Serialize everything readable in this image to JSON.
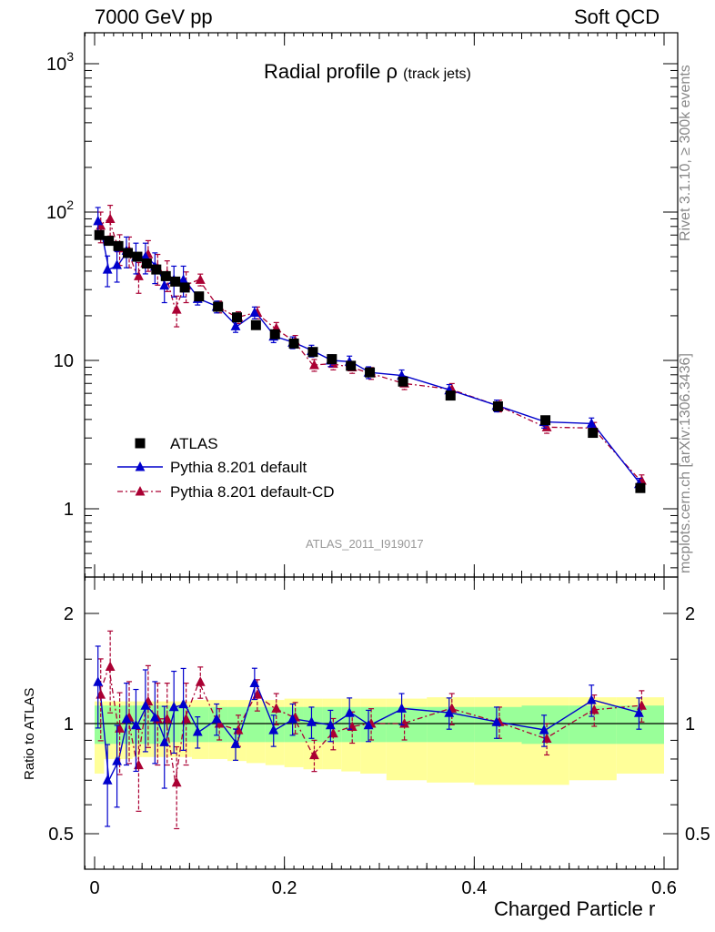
{
  "header": {
    "left": "7000 GeV pp",
    "right": "Soft QCD"
  },
  "side_labels": {
    "rivet": "Rivet 3.1.10, ≥ 300k events",
    "source": "mcplots.cern.ch [arXiv:1306.3436]"
  },
  "analysis_label": "ATLAS_2011_I919017",
  "colors": {
    "atlas": "#000000",
    "pythia_default": "#0000cc",
    "pythia_cd": "#aa0033",
    "band_inner": "#99ff99",
    "band_outer": "#ffff99"
  },
  "chart_data": [
    {
      "type": "scatter",
      "title": "Radial profile",
      "title_symbol": "ρ",
      "title_suffix": "(track jets)",
      "xlabel": "Charged Particle r",
      "ylabel": "",
      "yscale": "log",
      "xlim": [
        -0.01,
        0.6
      ],
      "ylim": [
        0.35,
        1600
      ],
      "x_ticks": [
        "0",
        "0.2",
        "0.4",
        "0.6"
      ],
      "y_ticks": [
        "1",
        "10",
        "10^2",
        "10^3"
      ],
      "legend": [
        "ATLAS",
        "Pythia 8.201 default",
        "Pythia 8.201 default-CD"
      ],
      "legend_position": "lower-left",
      "x": [
        0.005,
        0.015,
        0.025,
        0.035,
        0.045,
        0.055,
        0.065,
        0.075,
        0.085,
        0.095,
        0.11,
        0.13,
        0.15,
        0.17,
        0.19,
        0.21,
        0.23,
        0.25,
        0.27,
        0.29,
        0.325,
        0.375,
        0.425,
        0.475,
        0.525,
        0.575
      ],
      "series": [
        {
          "name": "ATLAS",
          "marker": "square",
          "values": [
            70,
            64,
            59,
            53,
            50,
            45,
            41,
            37,
            34,
            31,
            27,
            23,
            19.5,
            17.3,
            15,
            13,
            11.4,
            10.2,
            9.2,
            8.3,
            7.2,
            5.8,
            4.9,
            3.95,
            3.25,
            1.38
          ]
        },
        {
          "name": "Pythia 8.201 default",
          "marker": "triangle",
          "line": "solid",
          "values": [
            87,
            41,
            44,
            55,
            50,
            50,
            43,
            32,
            35,
            35,
            26,
            23,
            17,
            21,
            14.5,
            13.2,
            11.6,
            10,
            9.8,
            8.3,
            7.9,
            6.3,
            4.95,
            3.85,
            3.75,
            1.47
          ]
        },
        {
          "name": "Pythia 8.201 default-CD",
          "marker": "triangle",
          "line": "dashdot",
          "values": [
            81,
            90,
            57,
            55,
            37,
            52,
            42,
            38,
            22,
            32,
            35,
            23,
            19.5,
            21,
            16.5,
            13.5,
            9.3,
            9.5,
            9,
            8.2,
            7,
            6.4,
            4.95,
            3.55,
            3.5,
            1.55
          ]
        }
      ]
    },
    {
      "type": "scatter",
      "title": "",
      "xlabel": "Charged Particle r",
      "ylabel": "Ratio to ATLAS",
      "yscale": "log",
      "xlim": [
        -0.01,
        0.6
      ],
      "ylim": [
        0.42,
        2.4
      ],
      "x_ticks": [
        "0",
        "0.2",
        "0.4",
        "0.6"
      ],
      "y_ticks": [
        "0.5",
        "1",
        "2"
      ],
      "x": [
        0.005,
        0.015,
        0.025,
        0.035,
        0.045,
        0.055,
        0.065,
        0.075,
        0.085,
        0.095,
        0.11,
        0.13,
        0.15,
        0.17,
        0.19,
        0.21,
        0.23,
        0.25,
        0.27,
        0.29,
        0.325,
        0.375,
        0.425,
        0.475,
        0.525,
        0.575
      ],
      "series": [
        {
          "name": "Pythia 8.201 default",
          "values": [
            1.3,
            0.7,
            0.79,
            1.03,
            0.99,
            1.12,
            1.04,
            0.89,
            1.11,
            1.13,
            0.95,
            1.03,
            0.88,
            1.29,
            0.96,
            1.03,
            1.01,
            0.99,
            1.07,
            0.99,
            1.1,
            1.07,
            1.01,
            0.96,
            1.16,
            1.07
          ]
        },
        {
          "name": "Pythia 8.201 default-CD",
          "values": [
            1.2,
            1.43,
            0.97,
            1.04,
            0.77,
            1.15,
            1.03,
            1.03,
            0.69,
            1.03,
            1.3,
            1.0,
            0.96,
            1.2,
            1.1,
            1.04,
            0.82,
            0.94,
            0.98,
            1.0,
            1.0,
            1.1,
            1.01,
            0.91,
            1.09,
            1.12
          ]
        }
      ],
      "band_inner": [
        [
          0.88,
          1.12
        ],
        [
          0.88,
          1.12
        ],
        [
          0.88,
          1.12
        ],
        [
          0.88,
          1.12
        ],
        [
          0.88,
          1.12
        ],
        [
          0.88,
          1.12
        ],
        [
          0.88,
          1.12
        ],
        [
          0.88,
          1.12
        ],
        [
          0.89,
          1.11
        ],
        [
          0.89,
          1.11
        ],
        [
          0.89,
          1.11
        ],
        [
          0.89,
          1.11
        ],
        [
          0.89,
          1.11
        ],
        [
          0.89,
          1.11
        ],
        [
          0.89,
          1.11
        ],
        [
          0.89,
          1.11
        ],
        [
          0.89,
          1.11
        ],
        [
          0.89,
          1.11
        ],
        [
          0.89,
          1.11
        ],
        [
          0.89,
          1.11
        ],
        [
          0.89,
          1.11
        ],
        [
          0.89,
          1.11
        ],
        [
          0.89,
          1.11
        ],
        [
          0.88,
          1.12
        ],
        [
          0.88,
          1.12
        ],
        [
          0.88,
          1.12
        ]
      ],
      "band_outer": [
        [
          0.73,
          1.15
        ],
        [
          0.8,
          1.15
        ],
        [
          0.8,
          1.15
        ],
        [
          0.8,
          1.15
        ],
        [
          0.81,
          1.15
        ],
        [
          0.81,
          1.15
        ],
        [
          0.81,
          1.15
        ],
        [
          0.81,
          1.15
        ],
        [
          0.81,
          1.15
        ],
        [
          0.81,
          1.15
        ],
        [
          0.8,
          1.16
        ],
        [
          0.8,
          1.16
        ],
        [
          0.79,
          1.16
        ],
        [
          0.78,
          1.16
        ],
        [
          0.77,
          1.16
        ],
        [
          0.76,
          1.17
        ],
        [
          0.75,
          1.17
        ],
        [
          0.75,
          1.17
        ],
        [
          0.74,
          1.17
        ],
        [
          0.73,
          1.17
        ],
        [
          0.7,
          1.17
        ],
        [
          0.69,
          1.18
        ],
        [
          0.68,
          1.18
        ],
        [
          0.68,
          1.18
        ],
        [
          0.7,
          1.18
        ],
        [
          0.73,
          1.18
        ]
      ]
    }
  ]
}
